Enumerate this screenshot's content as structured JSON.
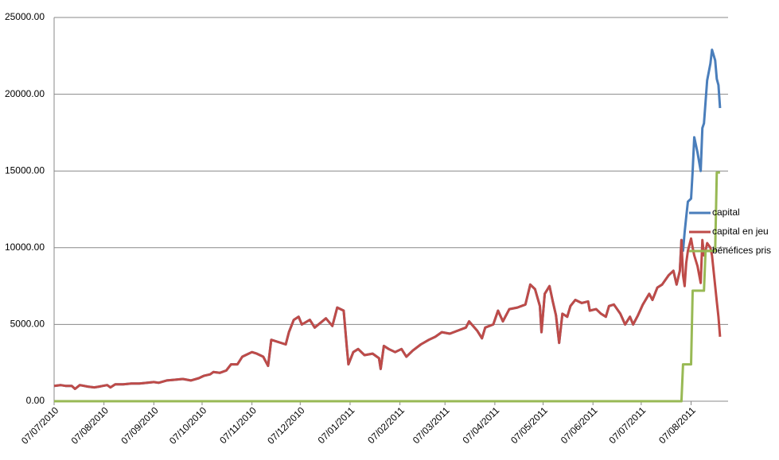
{
  "chart_data": {
    "type": "line",
    "x": [
      "07/07/2010",
      "11/07/2010",
      "14/07/2010",
      "18/07/2010",
      "20/07/2010",
      "23/07/2010",
      "28/07/2010",
      "01/08/2010",
      "04/08/2010",
      "09/08/2010",
      "11/08/2010",
      "14/08/2010",
      "19/08/2010",
      "24/08/2010",
      "29/08/2010",
      "03/09/2010",
      "07/09/2010",
      "10/09/2010",
      "15/09/2010",
      "20/09/2010",
      "25/09/2010",
      "30/09/2010",
      "05/10/2010",
      "08/10/2010",
      "12/10/2010",
      "14/10/2010",
      "18/10/2010",
      "22/10/2010",
      "25/10/2010",
      "29/10/2010",
      "01/11/2010",
      "03/11/2010",
      "07/11/2010",
      "10/11/2010",
      "14/11/2010",
      "17/11/2010",
      "19/11/2010",
      "28/11/2010",
      "30/11/2010",
      "03/12/2010",
      "06/12/2010",
      "08/12/2010",
      "13/12/2010",
      "16/12/2010",
      "23/12/2010",
      "27/12/2010",
      "30/12/2010",
      "03/01/2011",
      "05/01/2011",
      "06/01/2011",
      "09/01/2011",
      "12/01/2011",
      "16/01/2011",
      "21/01/2011",
      "25/01/2011",
      "26/01/2011",
      "28/01/2011",
      "31/01/2011",
      "04/02/2011",
      "08/02/2011",
      "11/02/2011",
      "15/02/2011",
      "20/02/2011",
      "25/02/2011",
      "01/03/2011",
      "05/03/2011",
      "10/03/2011",
      "15/03/2011",
      "20/03/2011",
      "22/03/2011",
      "27/03/2011",
      "30/03/2011",
      "01/04/2011",
      "06/04/2011",
      "09/04/2011",
      "12/04/2011",
      "16/04/2011",
      "21/04/2011",
      "26/04/2011",
      "29/04/2011",
      "02/05/2011",
      "05/05/2011",
      "06/05/2011",
      "08/05/2011",
      "11/05/2011",
      "13/05/2011",
      "15/05/2011",
      "17/05/2011",
      "19/05/2011",
      "22/05/2011",
      "24/05/2011",
      "27/05/2011",
      "31/05/2011",
      "04/06/2011",
      "05/06/2011",
      "09/06/2011",
      "12/06/2011",
      "15/06/2011",
      "17/06/2011",
      "20/06/2011",
      "24/06/2011",
      "27/06/2011",
      "30/06/2011",
      "02/07/2011",
      "05/07/2011",
      "08/07/2011",
      "12/07/2011",
      "14/07/2011",
      "17/07/2011",
      "20/07/2011",
      "24/07/2011",
      "27/07/2011",
      "29/07/2011",
      "31/07/2011",
      "01/08/2011",
      "02/08/2011",
      "03/08/2011",
      "04/08/2011",
      "05/08/2011",
      "07/08/2011",
      "08/08/2011",
      "09/08/2011",
      "11/08/2011",
      "13/08/2011",
      "14/08/2011",
      "15/08/2011",
      "16/08/2011",
      "17/08/2011",
      "19/08/2011",
      "20/08/2011",
      "22/08/2011",
      "23/08/2011",
      "24/08/2011",
      "25/08/2011"
    ],
    "series": [
      {
        "name": "capital",
        "color": "#4a7ebb",
        "values": [
          1000,
          1050,
          1000,
          1000,
          800,
          1050,
          950,
          900,
          950,
          1050,
          900,
          1100,
          1100,
          1150,
          1150,
          1200,
          1250,
          1200,
          1350,
          1400,
          1450,
          1350,
          1500,
          1650,
          1750,
          1900,
          1850,
          2000,
          2400,
          2400,
          2900,
          3000,
          3200,
          3100,
          2900,
          2300,
          4000,
          3700,
          4500,
          5300,
          5500,
          5000,
          5300,
          4800,
          5400,
          4900,
          6100,
          5900,
          3500,
          2400,
          3200,
          3400,
          3000,
          3100,
          2800,
          2100,
          3600,
          3400,
          3200,
          3400,
          2900,
          3300,
          3700,
          4000,
          4200,
          4500,
          4400,
          4600,
          4800,
          5200,
          4600,
          4100,
          4800,
          5000,
          5900,
          5200,
          6000,
          6100,
          6300,
          7600,
          7300,
          6200,
          4500,
          7000,
          7500,
          6500,
          5600,
          3800,
          5700,
          5500,
          6200,
          6600,
          6400,
          6500,
          5900,
          6000,
          5700,
          5500,
          6200,
          6300,
          5700,
          5000,
          5500,
          5000,
          5600,
          6300,
          7000,
          6600,
          7400,
          7600,
          8200,
          8500,
          7600,
          8500,
          10500,
          9800,
          11000,
          12000,
          13000,
          13200,
          15000,
          17200,
          16200,
          15000,
          17800,
          18100,
          19500,
          20900,
          22000,
          22900,
          22200,
          21000,
          20600,
          19100
        ]
      },
      {
        "name": "capital en jeu",
        "color": "#be4b48",
        "values": [
          1000,
          1050,
          1000,
          1000,
          800,
          1050,
          950,
          900,
          950,
          1050,
          900,
          1100,
          1100,
          1150,
          1150,
          1200,
          1250,
          1200,
          1350,
          1400,
          1450,
          1350,
          1500,
          1650,
          1750,
          1900,
          1850,
          2000,
          2400,
          2400,
          2900,
          3000,
          3200,
          3100,
          2900,
          2300,
          4000,
          3700,
          4500,
          5300,
          5500,
          5000,
          5300,
          4800,
          5400,
          4900,
          6100,
          5900,
          3500,
          2400,
          3200,
          3400,
          3000,
          3100,
          2800,
          2100,
          3600,
          3400,
          3200,
          3400,
          2900,
          3300,
          3700,
          4000,
          4200,
          4500,
          4400,
          4600,
          4800,
          5200,
          4600,
          4100,
          4800,
          5000,
          5900,
          5200,
          6000,
          6100,
          6300,
          7600,
          7300,
          6200,
          4500,
          7000,
          7500,
          6500,
          5600,
          3800,
          5700,
          5500,
          6200,
          6600,
          6400,
          6500,
          5900,
          6000,
          5700,
          5500,
          6200,
          6300,
          5700,
          5000,
          5500,
          5000,
          5600,
          6300,
          7000,
          6600,
          7400,
          7600,
          8200,
          8500,
          7600,
          8500,
          10500,
          8200,
          7500,
          9000,
          9800,
          10600,
          10000,
          9500,
          8800,
          7700,
          10500,
          9500,
          9800,
          10300,
          10000,
          9500,
          7500,
          6500,
          5500,
          4200
        ]
      },
      {
        "name": "bénéfices pris",
        "color": "#98b954",
        "values": [
          0,
          0,
          0,
          0,
          0,
          0,
          0,
          0,
          0,
          0,
          0,
          0,
          0,
          0,
          0,
          0,
          0,
          0,
          0,
          0,
          0,
          0,
          0,
          0,
          0,
          0,
          0,
          0,
          0,
          0,
          0,
          0,
          0,
          0,
          0,
          0,
          0,
          0,
          0,
          0,
          0,
          0,
          0,
          0,
          0,
          0,
          0,
          0,
          0,
          0,
          0,
          0,
          0,
          0,
          0,
          0,
          0,
          0,
          0,
          0,
          0,
          0,
          0,
          0,
          0,
          0,
          0,
          0,
          0,
          0,
          0,
          0,
          0,
          0,
          0,
          0,
          0,
          0,
          0,
          0,
          0,
          0,
          0,
          0,
          0,
          0,
          0,
          0,
          0,
          0,
          0,
          0,
          0,
          0,
          0,
          0,
          0,
          0,
          0,
          0,
          0,
          0,
          0,
          0,
          0,
          0,
          0,
          0,
          0,
          0,
          0,
          0,
          0,
          0,
          0,
          2400,
          2400,
          2400,
          2400,
          2400,
          7200,
          7200,
          7200,
          7200,
          7200,
          7200,
          9800,
          9800,
          9800,
          9800,
          9800,
          14900,
          14900,
          14900
        ]
      }
    ],
    "xlim": [
      "07/07/2010",
      "30/08/2011"
    ],
    "xticks": [
      "07/07/2010",
      "07/08/2010",
      "07/09/2010",
      "07/10/2010",
      "07/11/2010",
      "07/12/2010",
      "07/01/2011",
      "07/02/2011",
      "07/03/2011",
      "07/04/2011",
      "07/05/2011",
      "07/06/2011",
      "07/07/2011",
      "07/08/2011"
    ],
    "ylim": [
      0,
      25000
    ],
    "yticks": [
      {
        "value": 0,
        "label": "0.00"
      },
      {
        "value": 5000,
        "label": "5000.00"
      },
      {
        "value": 10000,
        "label": "10000.00"
      },
      {
        "value": 15000,
        "label": "15000.00"
      },
      {
        "value": 20000,
        "label": "20000.00"
      },
      {
        "value": 25000,
        "label": "25000.00"
      }
    ],
    "grid": true,
    "legend": "right"
  }
}
